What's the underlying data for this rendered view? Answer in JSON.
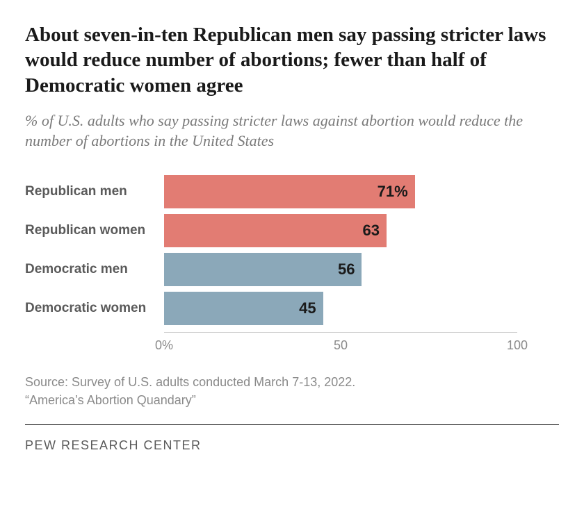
{
  "title": "About seven-in-ten Republican men say passing stricter laws would reduce number of abortions; fewer than half of Democratic women agree",
  "subtitle": "% of U.S. adults who say passing stricter laws against abortion would reduce the number of abortions in the United States",
  "chart": {
    "type": "bar",
    "x_max": 100,
    "ticks": [
      {
        "pos": 0,
        "label": "0%"
      },
      {
        "pos": 50,
        "label": "50"
      },
      {
        "pos": 100,
        "label": "100"
      }
    ],
    "bars": [
      {
        "label": "Republican men",
        "value": 71,
        "value_label": "71%",
        "color": "#e27c73"
      },
      {
        "label": "Republican women",
        "value": 63,
        "value_label": "63",
        "color": "#e27c73"
      },
      {
        "label": "Democratic men",
        "value": 56,
        "value_label": "56",
        "color": "#8ba8b9"
      },
      {
        "label": "Democratic women",
        "value": 45,
        "value_label": "45",
        "color": "#8ba8b9"
      }
    ],
    "title_color": "#1a1a1a",
    "subtitle_color": "#7a7a7a",
    "label_color": "#5a5a5a",
    "tick_color": "#8a8a8a",
    "value_color": "#1a1a1a",
    "background_color": "#ffffff"
  },
  "footer": {
    "source_line": "Source: Survey of U.S. adults conducted March 7-13, 2022.",
    "report_line": "“America’s Abortion Quandary”",
    "attribution": "PEW RESEARCH CENTER"
  }
}
